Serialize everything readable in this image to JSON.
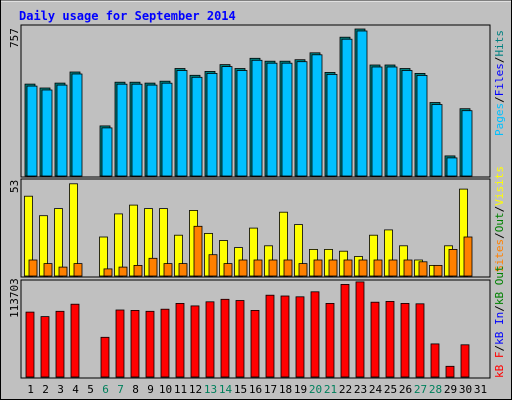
{
  "title": "Daily usage for September 2014",
  "colors": {
    "frame": "#c0c0c0",
    "plot_bg": "#c0c0c0",
    "pages": "#00c0ff",
    "hits": "#008080",
    "visits": "#ffff00",
    "sites": "#ff8000",
    "kbytes": "#ff0000",
    "kb_in": "#0000ff",
    "kb_out": "#008000",
    "title": "#0000ff",
    "weekend_day": "#00805c"
  },
  "labels": {
    "panel1": {
      "top_value": "757",
      "legend": [
        "Pages",
        "Files",
        "Hits"
      ]
    },
    "panel2": {
      "top_value": "53",
      "legend": [
        "Sites",
        "Out",
        "Visits"
      ]
    },
    "panel3": {
      "top_value": "113703",
      "legend": [
        "kB F",
        "kB In",
        "kB Out"
      ]
    }
  },
  "chart_data": [
    {
      "type": "bar",
      "name": "panel1",
      "categories": [
        "1",
        "2",
        "3",
        "4",
        "5",
        "6",
        "7",
        "8",
        "9",
        "10",
        "11",
        "12",
        "13",
        "14",
        "15",
        "16",
        "17",
        "18",
        "19",
        "20",
        "21",
        "22",
        "23",
        "24",
        "25",
        "26",
        "27",
        "28",
        "29",
        "30",
        "31"
      ],
      "ylim": [
        0,
        757
      ],
      "series": [
        {
          "name": "Hits",
          "values": [
            470,
            450,
            475,
            532,
            0,
            256,
            480,
            480,
            475,
            485,
            550,
            515,
            535,
            570,
            550,
            602,
            587,
            587,
            595,
            630,
            530,
            710,
            752,
            568,
            568,
            550,
            525,
            376,
            103,
            344,
            0
          ]
        },
        {
          "name": "Pages",
          "values": [
            470,
            450,
            475,
            532,
            0,
            256,
            480,
            480,
            475,
            485,
            550,
            515,
            535,
            570,
            550,
            602,
            587,
            587,
            595,
            630,
            530,
            710,
            752,
            568,
            568,
            550,
            525,
            376,
            103,
            344,
            0
          ]
        }
      ]
    },
    {
      "type": "bar",
      "name": "panel2",
      "categories": [
        "1",
        "2",
        "3",
        "4",
        "5",
        "6",
        "7",
        "8",
        "9",
        "10",
        "11",
        "12",
        "13",
        "14",
        "15",
        "16",
        "17",
        "18",
        "19",
        "20",
        "21",
        "22",
        "23",
        "24",
        "25",
        "26",
        "27",
        "28",
        "29",
        "30",
        "31"
      ],
      "ylim": [
        0,
        53
      ],
      "series": [
        {
          "name": "Visits",
          "values": [
            45,
            34,
            38,
            52,
            0,
            22,
            35,
            40,
            38,
            38,
            23,
            37,
            24,
            20,
            16,
            27,
            17,
            36,
            29,
            15,
            15,
            14,
            11,
            23,
            26,
            17,
            9,
            6,
            17,
            49,
            0
          ]
        },
        {
          "name": "Sites",
          "values": [
            9,
            7,
            5,
            7,
            0,
            4,
            5,
            6,
            10,
            7,
            7,
            28,
            12,
            7,
            9,
            9,
            9,
            9,
            7,
            9,
            9,
            9,
            9,
            9,
            9,
            9,
            8,
            6,
            15,
            22,
            0
          ]
        }
      ]
    },
    {
      "type": "bar",
      "name": "panel3",
      "categories": [
        "1",
        "2",
        "3",
        "4",
        "5",
        "6",
        "7",
        "8",
        "9",
        "10",
        "11",
        "12",
        "13",
        "14",
        "15",
        "16",
        "17",
        "18",
        "19",
        "20",
        "21",
        "22",
        "23",
        "24",
        "25",
        "26",
        "27",
        "28",
        "29",
        "30",
        "31"
      ],
      "ylim": [
        0,
        113703
      ],
      "series": [
        {
          "name": "kB F",
          "values": [
            78500,
            73000,
            79500,
            88000,
            0,
            48000,
            81000,
            80500,
            79500,
            82000,
            89000,
            86000,
            91000,
            94000,
            92500,
            80500,
            99000,
            98000,
            97000,
            103000,
            89000,
            112000,
            115000,
            90500,
            91500,
            89000,
            88500,
            40000,
            13000,
            39000,
            0
          ]
        }
      ]
    }
  ],
  "x_labels": [
    {
      "text": "1",
      "weekend": false
    },
    {
      "text": "2",
      "weekend": false
    },
    {
      "text": "3",
      "weekend": false
    },
    {
      "text": "4",
      "weekend": false
    },
    {
      "text": "5",
      "weekend": false
    },
    {
      "text": "6",
      "weekend": true
    },
    {
      "text": "7",
      "weekend": true
    },
    {
      "text": "8",
      "weekend": false
    },
    {
      "text": "9",
      "weekend": false
    },
    {
      "text": "10",
      "weekend": false
    },
    {
      "text": "11",
      "weekend": false
    },
    {
      "text": "12",
      "weekend": false
    },
    {
      "text": "13",
      "weekend": true
    },
    {
      "text": "14",
      "weekend": true
    },
    {
      "text": "15",
      "weekend": false
    },
    {
      "text": "16",
      "weekend": false
    },
    {
      "text": "17",
      "weekend": false
    },
    {
      "text": "18",
      "weekend": false
    },
    {
      "text": "19",
      "weekend": false
    },
    {
      "text": "20",
      "weekend": true
    },
    {
      "text": "21",
      "weekend": true
    },
    {
      "text": "22",
      "weekend": false
    },
    {
      "text": "23",
      "weekend": false
    },
    {
      "text": "24",
      "weekend": false
    },
    {
      "text": "25",
      "weekend": false
    },
    {
      "text": "26",
      "weekend": false
    },
    {
      "text": "27",
      "weekend": true
    },
    {
      "text": "28",
      "weekend": true
    },
    {
      "text": "29",
      "weekend": false
    },
    {
      "text": "30",
      "weekend": false
    },
    {
      "text": "31",
      "weekend": false
    }
  ]
}
